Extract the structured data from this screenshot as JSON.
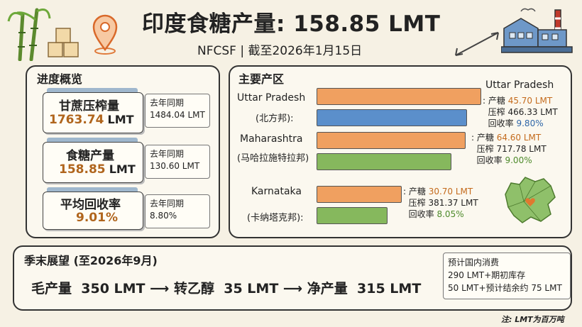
{
  "header": {
    "title": "印度食糖产量: 158.85 LMT",
    "subtitle": "NFCSF | 截至2026年1月15日"
  },
  "progress": {
    "title": "进度概览",
    "cards": [
      {
        "label": "甘蔗压榨量",
        "value": "1763.74",
        "unit": "LMT",
        "prev_label": "去年同期",
        "prev_value": "1484.04 LMT"
      },
      {
        "label": "食糖产量",
        "value": "158.85",
        "unit": "LMT",
        "prev_label": "去年同期",
        "prev_value": "130.60 LMT"
      },
      {
        "label": "平均回收率",
        "value": "9.01%",
        "unit": "",
        "prev_label": "去年同期",
        "prev_value": "8.80%"
      }
    ]
  },
  "regions": {
    "title": "主要产区",
    "items": [
      {
        "name": "Uttar Pradesh",
        "name_cn": "(北方邦):",
        "label_right": "Uttar Pradesh",
        "sugar_label": "产糖",
        "sugar": "45.70 LMT",
        "crush_label": "压榨",
        "crush": "466.33 LMT",
        "recovery_label": "回收率",
        "recovery": "9.80%"
      },
      {
        "name": "Maharashtra",
        "name_cn": "(马哈拉施特拉邦)",
        "label_right": "",
        "sugar_label": "产糖",
        "sugar": "64.60 LMT",
        "crush_label": "压榨",
        "crush": "717.78 LMT",
        "recovery_label": "回收率",
        "recovery": "9.00%"
      },
      {
        "name": "Karnataka",
        "name_cn": "(卡纳塔克邦):",
        "label_right": "",
        "sugar_label": "产糖",
        "sugar": "30.70 LMT",
        "crush_label": "压榨",
        "crush": "381.37 LMT",
        "recovery_label": "回收率",
        "recovery": "8.05%"
      }
    ]
  },
  "outlook": {
    "title": "季末展望 (至2026年9月)",
    "gross_label": "毛产量",
    "gross_value": "350 LMT",
    "arrow1": "⟶",
    "ethanol_label": "转乙醇",
    "ethanol_value": "35 LMT",
    "arrow2": "⟶",
    "net_label": "净产量",
    "net_value": "315 LMT",
    "side_lines": [
      "预计国内消费",
      "290 LMT+期初库存",
      "50 LMT+预计结余约 75 LMT"
    ]
  },
  "footnote": "注: LMT为百万吨",
  "colors": {
    "sugar": "#f0a060",
    "crush": "#5b8fcb",
    "recovery": "#86b85d"
  },
  "icons": [
    "sugarcane-icon",
    "sugar-cubes-icon",
    "location-pin-icon",
    "factory-icon",
    "india-map-icon"
  ]
}
